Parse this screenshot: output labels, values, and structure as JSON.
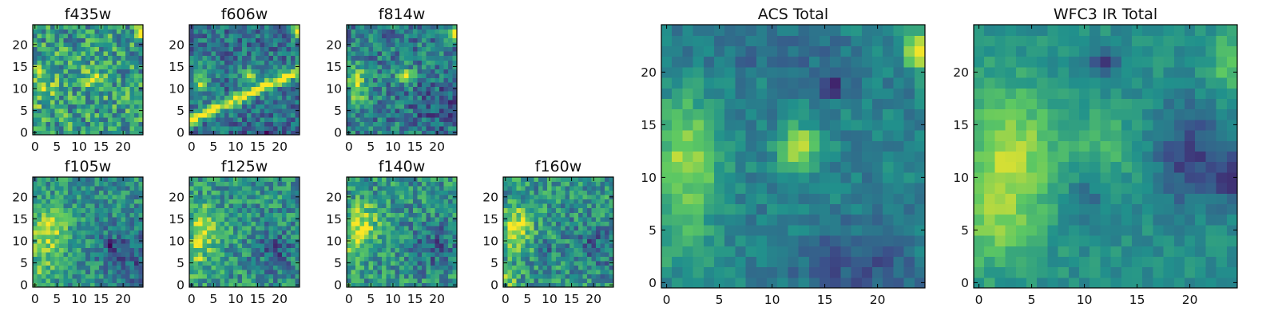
{
  "figure": {
    "background": "#ffffff"
  },
  "colormap": {
    "name": "viridis",
    "stops": [
      "#440154",
      "#3b528b",
      "#21918c",
      "#5ec962",
      "#fde725"
    ]
  },
  "chart_data": [
    {
      "type": "heatmap",
      "title": "f435w",
      "grid": false,
      "xticks": [
        0,
        5,
        10,
        15,
        20
      ],
      "yticks": [
        0,
        5,
        10,
        15,
        20
      ],
      "xlim": [
        -0.5,
        24.5
      ],
      "ylim": [
        -0.5,
        24.5
      ],
      "shape": [
        25,
        25
      ],
      "value_range": [
        0,
        1
      ],
      "base": 0.56,
      "noise": 0.28,
      "seed": 11,
      "features": [
        {
          "kind": "blob",
          "x": 1.5,
          "y": 11,
          "sx": 2.5,
          "sy": 3.5,
          "a": 0.25
        },
        {
          "kind": "blob",
          "x": 13,
          "y": 13,
          "sx": 1.8,
          "sy": 1.8,
          "a": 0.28
        },
        {
          "kind": "blob",
          "x": 24,
          "y": 23,
          "sx": 0.9,
          "sy": 1.2,
          "a": 0.4
        }
      ]
    },
    {
      "type": "heatmap",
      "title": "f606w",
      "grid": false,
      "xticks": [
        0,
        5,
        10,
        15,
        20
      ],
      "yticks": [
        0,
        5,
        10,
        15,
        20
      ],
      "xlim": [
        -0.5,
        24.5
      ],
      "ylim": [
        -0.5,
        24.5
      ],
      "shape": [
        25,
        25
      ],
      "value_range": [
        0,
        1
      ],
      "base": 0.38,
      "noise": 0.2,
      "seed": 23,
      "features": [
        {
          "kind": "streak",
          "x0": 0,
          "y0": 3,
          "x1": 24,
          "y1": 14,
          "w": 0.9,
          "a": 0.62
        },
        {
          "kind": "blob",
          "x": 2,
          "y": 12,
          "sx": 1.4,
          "sy": 2.2,
          "a": 0.45
        },
        {
          "kind": "blob",
          "x": 13,
          "y": 13,
          "sx": 1.3,
          "sy": 1.3,
          "a": 0.48
        },
        {
          "kind": "blob",
          "x": 24,
          "y": 23,
          "sx": 0.8,
          "sy": 1.2,
          "a": 0.5
        },
        {
          "kind": "blob",
          "x": 17,
          "y": 0,
          "sx": 3.5,
          "sy": 1.2,
          "a": -0.2
        }
      ]
    },
    {
      "type": "heatmap",
      "title": "f814w",
      "grid": false,
      "xticks": [
        0,
        5,
        10,
        15,
        20
      ],
      "yticks": [
        0,
        5,
        10,
        15,
        20
      ],
      "xlim": [
        -0.5,
        24.5
      ],
      "ylim": [
        -0.5,
        24.5
      ],
      "shape": [
        25,
        25
      ],
      "value_range": [
        0,
        1
      ],
      "base": 0.42,
      "noise": 0.22,
      "seed": 37,
      "features": [
        {
          "kind": "blob",
          "x": 2,
          "y": 11,
          "sx": 1.8,
          "sy": 3.2,
          "a": 0.42
        },
        {
          "kind": "blob",
          "x": 13,
          "y": 13,
          "sx": 1.3,
          "sy": 1.3,
          "a": 0.45
        },
        {
          "kind": "blob",
          "x": 24,
          "y": 23,
          "sx": 0.8,
          "sy": 1.2,
          "a": 0.5
        },
        {
          "kind": "blob",
          "x": 20,
          "y": 6,
          "sx": 4,
          "sy": 4,
          "a": -0.15
        }
      ]
    },
    {
      "type": "heatmap",
      "title": "f105w",
      "grid": false,
      "xticks": [
        0,
        5,
        10,
        15,
        20
      ],
      "yticks": [
        0,
        5,
        10,
        15,
        20
      ],
      "xlim": [
        -0.5,
        24.5
      ],
      "ylim": [
        -0.5,
        24.5
      ],
      "shape": [
        25,
        25
      ],
      "value_range": [
        0,
        1
      ],
      "base": 0.5,
      "noise": 0.2,
      "seed": 41,
      "features": [
        {
          "kind": "blob",
          "x": 3,
          "y": 12,
          "sx": 3,
          "sy": 4,
          "a": 0.4
        },
        {
          "kind": "blob",
          "x": 1,
          "y": 3,
          "sx": 2.5,
          "sy": 3,
          "a": 0.2
        },
        {
          "kind": "blob",
          "x": 21,
          "y": 7,
          "sx": 4,
          "sy": 5,
          "a": -0.22
        },
        {
          "kind": "blob",
          "x": 17,
          "y": 9,
          "sx": 0.8,
          "sy": 0.8,
          "a": -0.35
        }
      ]
    },
    {
      "type": "heatmap",
      "title": "f125w",
      "grid": false,
      "xticks": [
        0,
        5,
        10,
        15,
        20
      ],
      "yticks": [
        0,
        5,
        10,
        15,
        20
      ],
      "xlim": [
        -0.5,
        24.5
      ],
      "ylim": [
        -0.5,
        24.5
      ],
      "shape": [
        25,
        25
      ],
      "value_range": [
        0,
        1
      ],
      "base": 0.52,
      "noise": 0.22,
      "seed": 53,
      "features": [
        {
          "kind": "blob",
          "x": 3,
          "y": 13,
          "sx": 2.5,
          "sy": 3.5,
          "a": 0.38
        },
        {
          "kind": "blob",
          "x": 1,
          "y": 6,
          "sx": 2,
          "sy": 3,
          "a": 0.22
        },
        {
          "kind": "blob",
          "x": 19,
          "y": 8,
          "sx": 3.5,
          "sy": 4,
          "a": -0.2
        }
      ]
    },
    {
      "type": "heatmap",
      "title": "f140w",
      "grid": false,
      "xticks": [
        0,
        5,
        10,
        15,
        20
      ],
      "yticks": [
        0,
        5,
        10,
        15,
        20
      ],
      "xlim": [
        -0.5,
        24.5
      ],
      "ylim": [
        -0.5,
        24.5
      ],
      "shape": [
        25,
        25
      ],
      "value_range": [
        0,
        1
      ],
      "base": 0.52,
      "noise": 0.22,
      "seed": 67,
      "features": [
        {
          "kind": "blob",
          "x": 3,
          "y": 14,
          "sx": 2.5,
          "sy": 3.5,
          "a": 0.38
        },
        {
          "kind": "blob",
          "x": 1,
          "y": 7,
          "sx": 2,
          "sy": 3,
          "a": 0.2
        },
        {
          "kind": "blob",
          "x": 19,
          "y": 9,
          "sx": 4,
          "sy": 4,
          "a": -0.2
        }
      ]
    },
    {
      "type": "heatmap",
      "title": "f160w",
      "grid": false,
      "xticks": [
        0,
        5,
        10,
        15,
        20
      ],
      "yticks": [
        0,
        5,
        10,
        15,
        20
      ],
      "xlim": [
        -0.5,
        24.5
      ],
      "ylim": [
        -0.5,
        24.5
      ],
      "shape": [
        25,
        25
      ],
      "value_range": [
        0,
        1
      ],
      "base": 0.52,
      "noise": 0.22,
      "seed": 79,
      "features": [
        {
          "kind": "blob",
          "x": 2.5,
          "y": 13,
          "sx": 2.5,
          "sy": 3.5,
          "a": 0.4
        },
        {
          "kind": "blob",
          "x": 0.5,
          "y": 2,
          "sx": 1.5,
          "sy": 2,
          "a": 0.3
        },
        {
          "kind": "blob",
          "x": 9,
          "y": 9,
          "sx": 0.9,
          "sy": 0.9,
          "a": -0.35
        },
        {
          "kind": "blob",
          "x": 20,
          "y": 9,
          "sx": 3.5,
          "sy": 4,
          "a": -0.2
        }
      ]
    },
    {
      "type": "heatmap",
      "title": "ACS Total",
      "grid": false,
      "xticks": [
        0,
        5,
        10,
        15,
        20
      ],
      "yticks": [
        0,
        5,
        10,
        15,
        20
      ],
      "xlim": [
        -0.5,
        24.5
      ],
      "ylim": [
        -0.5,
        24.5
      ],
      "shape": [
        25,
        25
      ],
      "value_range": [
        0,
        1
      ],
      "base": 0.44,
      "noise": 0.1,
      "seed": 101,
      "features": [
        {
          "kind": "blob",
          "x": 2,
          "y": 12,
          "sx": 2.2,
          "sy": 4,
          "a": 0.42
        },
        {
          "kind": "blob",
          "x": 1,
          "y": 4,
          "sx": 2.5,
          "sy": 2.5,
          "a": 0.15
        },
        {
          "kind": "blob",
          "x": 12.5,
          "y": 13,
          "sx": 1.4,
          "sy": 1.4,
          "a": 0.45
        },
        {
          "kind": "blob",
          "x": 24,
          "y": 22,
          "sx": 1,
          "sy": 1.3,
          "a": 0.5
        },
        {
          "kind": "blob",
          "x": 16,
          "y": 18.5,
          "sx": 0.8,
          "sy": 0.8,
          "a": -0.35
        },
        {
          "kind": "blob",
          "x": 18,
          "y": 2,
          "sx": 4,
          "sy": 2.5,
          "a": -0.18
        },
        {
          "kind": "blob",
          "x": 10,
          "y": 22,
          "sx": 4,
          "sy": 1.5,
          "a": -0.12
        }
      ]
    },
    {
      "type": "heatmap",
      "title": "WFC3 IR Total",
      "grid": false,
      "xticks": [
        0,
        5,
        10,
        15,
        20
      ],
      "yticks": [
        0,
        5,
        10,
        15,
        20
      ],
      "xlim": [
        -0.5,
        24.5
      ],
      "ylim": [
        -0.5,
        24.5
      ],
      "shape": [
        25,
        25
      ],
      "value_range": [
        0,
        1
      ],
      "base": 0.5,
      "noise": 0.08,
      "seed": 131,
      "features": [
        {
          "kind": "blob",
          "x": 3,
          "y": 12,
          "sx": 3,
          "sy": 4.5,
          "a": 0.38
        },
        {
          "kind": "blob",
          "x": 1,
          "y": 5,
          "sx": 2.5,
          "sy": 3,
          "a": 0.2
        },
        {
          "kind": "blob",
          "x": 12,
          "y": 13,
          "sx": 2.5,
          "sy": 2.5,
          "a": 0.15
        },
        {
          "kind": "blob",
          "x": 24,
          "y": 21,
          "sx": 1.5,
          "sy": 2,
          "a": 0.25
        },
        {
          "kind": "blob",
          "x": 20,
          "y": 12,
          "sx": 2.5,
          "sy": 3.5,
          "a": -0.28
        },
        {
          "kind": "blob",
          "x": 12,
          "y": 21,
          "sx": 1.2,
          "sy": 1,
          "a": -0.3
        },
        {
          "kind": "blob",
          "x": 24,
          "y": 10,
          "sx": 1,
          "sy": 1.5,
          "a": -0.3
        },
        {
          "kind": "blob",
          "x": 10,
          "y": 8,
          "sx": 1.5,
          "sy": 1.5,
          "a": -0.15
        }
      ]
    }
  ]
}
